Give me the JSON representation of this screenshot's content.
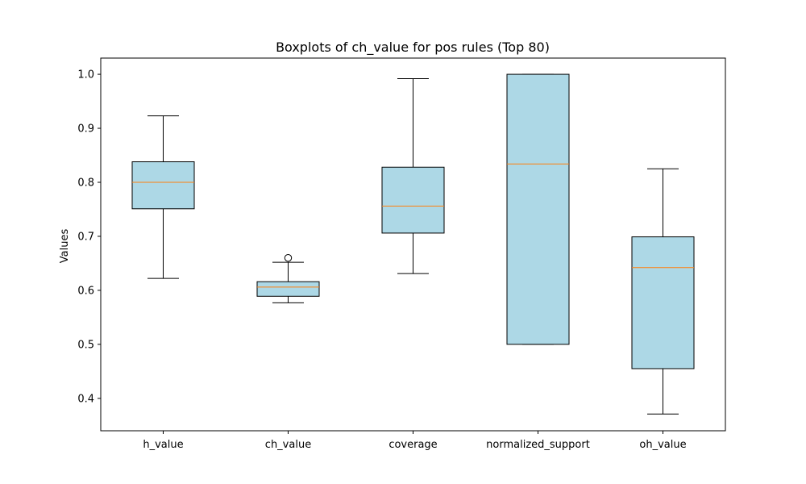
{
  "chart_data": {
    "type": "boxplot",
    "title": "Boxplots of ch_value for pos rules (Top 80)",
    "xlabel": "",
    "ylabel": "Values",
    "ylim": [
      0.34,
      1.03
    ],
    "yticks": [
      "0.4",
      "0.5",
      "0.6",
      "0.7",
      "0.8",
      "0.9",
      "1.0"
    ],
    "grid": false,
    "legend": "none",
    "colors": {
      "box_fill": "#add8e6",
      "box_edge": "#000000",
      "median": "#ff7f0e",
      "outlier_fill": "#ffffff"
    },
    "boxes": [
      {
        "category": "h_value",
        "whisker_low": 0.622,
        "q1": 0.751,
        "median": 0.8,
        "q3": 0.838,
        "whisker_high": 0.923,
        "outliers": []
      },
      {
        "category": "ch_value",
        "whisker_low": 0.577,
        "q1": 0.589,
        "median": 0.606,
        "q3": 0.616,
        "whisker_high": 0.652,
        "outliers": [
          0.66
        ]
      },
      {
        "category": "coverage",
        "whisker_low": 0.631,
        "q1": 0.706,
        "median": 0.756,
        "q3": 0.828,
        "whisker_high": 0.992,
        "outliers": []
      },
      {
        "category": "normalized_support",
        "whisker_low": 0.5,
        "q1": 0.5,
        "median": 0.834,
        "q3": 1.0,
        "whisker_high": 1.0,
        "outliers": []
      },
      {
        "category": "oh_value",
        "whisker_low": 0.371,
        "q1": 0.455,
        "median": 0.642,
        "q3": 0.699,
        "whisker_high": 0.825,
        "outliers": []
      }
    ]
  }
}
